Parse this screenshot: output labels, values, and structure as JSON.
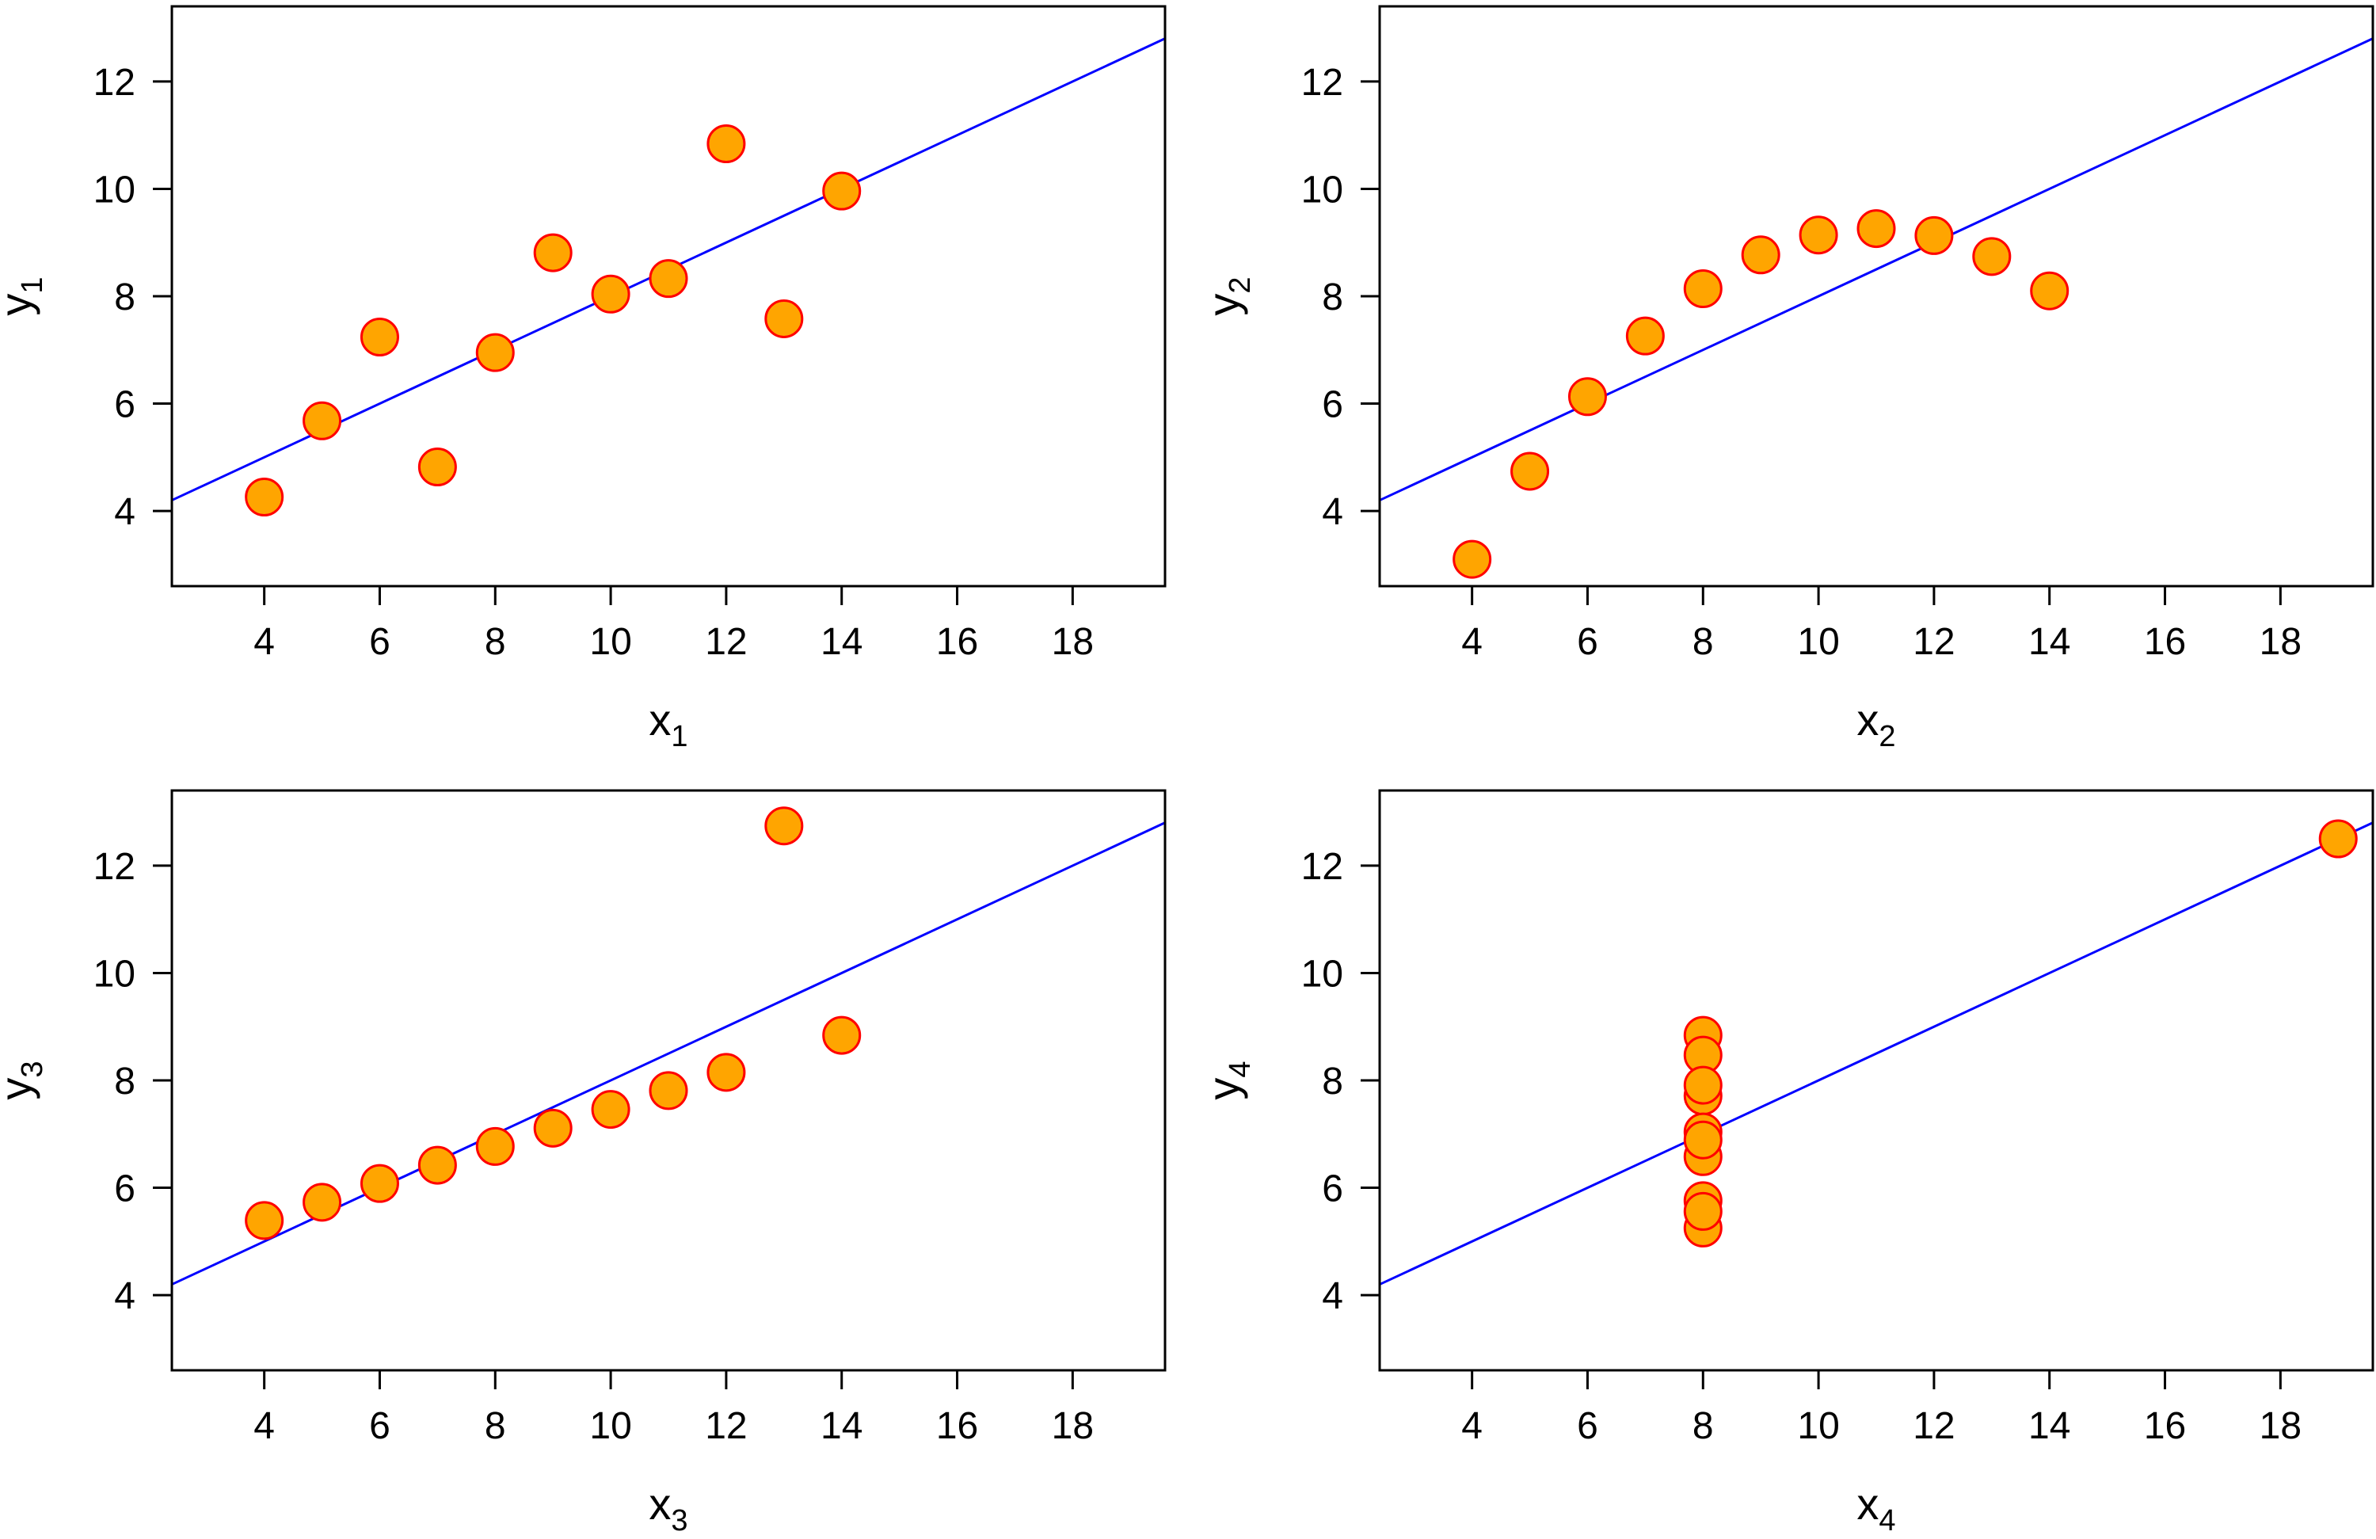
{
  "colors": {
    "point_fill": "#FFA500",
    "point_stroke": "#FF0000",
    "fit_line": "#0000FF",
    "axes": "#000000",
    "background": "#FFFFFF"
  },
  "chart_data": [
    {
      "type": "scatter",
      "title": "",
      "xlabel": "x",
      "xlabel_sub": "1",
      "ylabel": "y",
      "ylabel_sub": "1",
      "xlim": [
        2.4,
        19.6
      ],
      "ylim": [
        2.6,
        13.4
      ],
      "xticks": [
        4,
        6,
        8,
        10,
        12,
        14,
        16,
        18
      ],
      "yticks": [
        4,
        6,
        8,
        10,
        12
      ],
      "grid": false,
      "x": [
        10,
        8,
        13,
        9,
        11,
        14,
        6,
        4,
        12,
        7,
        5
      ],
      "y": [
        8.04,
        6.95,
        7.58,
        8.81,
        8.33,
        9.96,
        7.24,
        4.26,
        10.84,
        4.82,
        5.68
      ],
      "fit_line": {
        "intercept": 3.0,
        "slope": 0.5
      }
    },
    {
      "type": "scatter",
      "title": "",
      "xlabel": "x",
      "xlabel_sub": "2",
      "ylabel": "y",
      "ylabel_sub": "2",
      "xlim": [
        2.4,
        19.6
      ],
      "ylim": [
        2.6,
        13.4
      ],
      "xticks": [
        4,
        6,
        8,
        10,
        12,
        14,
        16,
        18
      ],
      "yticks": [
        4,
        6,
        8,
        10,
        12
      ],
      "grid": false,
      "x": [
        10,
        8,
        13,
        9,
        11,
        14,
        6,
        4,
        12,
        7,
        5
      ],
      "y": [
        9.14,
        8.14,
        8.74,
        8.77,
        9.26,
        8.1,
        6.13,
        3.1,
        9.13,
        7.26,
        4.74
      ],
      "fit_line": {
        "intercept": 3.0,
        "slope": 0.5
      }
    },
    {
      "type": "scatter",
      "title": "",
      "xlabel": "x",
      "xlabel_sub": "3",
      "ylabel": "y",
      "ylabel_sub": "3",
      "xlim": [
        2.4,
        19.6
      ],
      "ylim": [
        2.6,
        13.4
      ],
      "xticks": [
        4,
        6,
        8,
        10,
        12,
        14,
        16,
        18
      ],
      "yticks": [
        4,
        6,
        8,
        10,
        12
      ],
      "grid": false,
      "x": [
        10,
        8,
        13,
        9,
        11,
        14,
        6,
        4,
        12,
        7,
        5
      ],
      "y": [
        7.46,
        6.77,
        12.74,
        7.11,
        7.81,
        8.84,
        6.08,
        5.39,
        8.15,
        6.42,
        5.73
      ],
      "fit_line": {
        "intercept": 3.0,
        "slope": 0.5
      }
    },
    {
      "type": "scatter",
      "title": "",
      "xlabel": "x",
      "xlabel_sub": "4",
      "ylabel": "y",
      "ylabel_sub": "4",
      "xlim": [
        2.4,
        19.6
      ],
      "ylim": [
        2.6,
        13.4
      ],
      "xticks": [
        4,
        6,
        8,
        10,
        12,
        14,
        16,
        18
      ],
      "yticks": [
        4,
        6,
        8,
        10,
        12
      ],
      "grid": false,
      "x": [
        8,
        8,
        8,
        8,
        8,
        8,
        8,
        19,
        8,
        8,
        8
      ],
      "y": [
        6.58,
        5.76,
        7.71,
        8.84,
        8.47,
        7.04,
        5.25,
        12.5,
        5.56,
        7.91,
        6.89
      ],
      "fit_line": {
        "intercept": 3.0,
        "slope": 0.5
      }
    }
  ]
}
